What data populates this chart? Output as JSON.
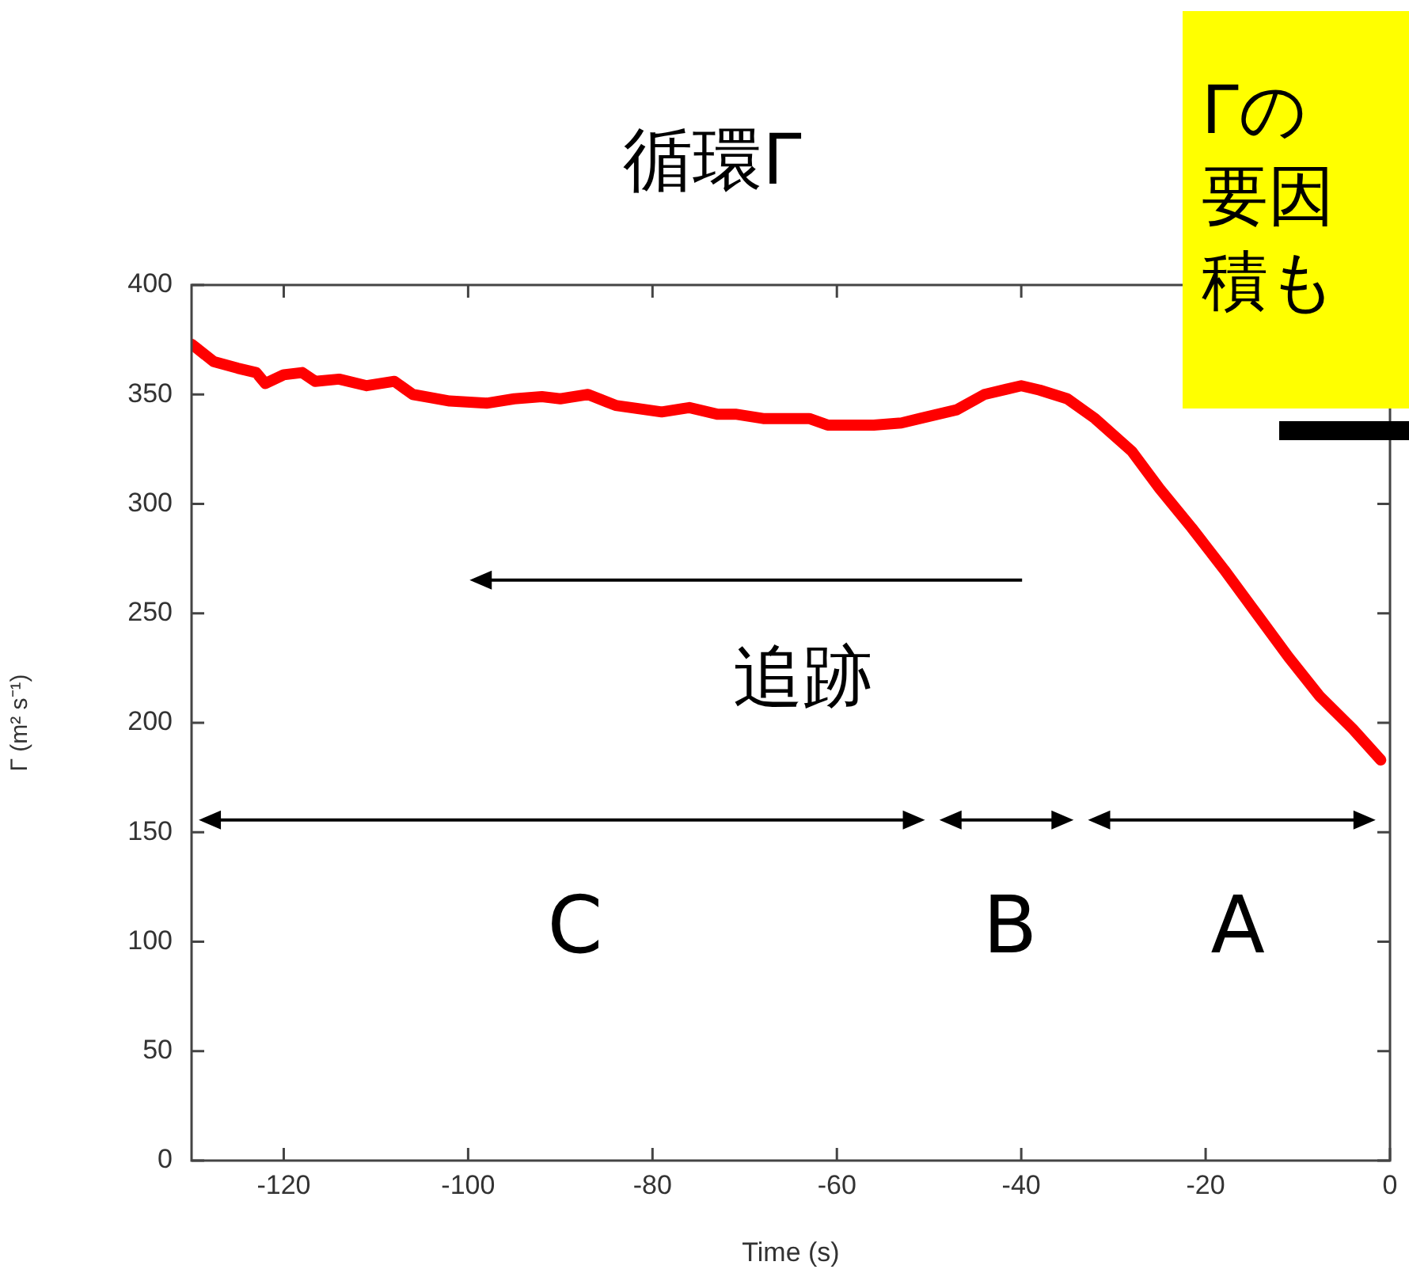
{
  "chart_data": {
    "type": "line",
    "title": "循環Γ",
    "xlabel": "Time (s)",
    "ylabel": "Γ (m² s⁻¹)",
    "xlim": [
      -130,
      0
    ],
    "xticks": [
      -120,
      -100,
      -80,
      -60,
      -40,
      -20,
      0
    ],
    "ylim": [
      0,
      400
    ],
    "yticks": [
      0,
      50,
      100,
      150,
      200,
      250,
      300,
      350,
      400
    ],
    "grid": false,
    "legend": false,
    "marker": "none",
    "line_style": "solid",
    "series": [
      {
        "color": "#ff0000",
        "x": [
          -130,
          -127.6,
          -125,
          -123,
          -122,
          -120,
          -118,
          -116.6,
          -114,
          -111,
          -108,
          -106,
          -102,
          -98,
          -95,
          -92,
          -90,
          -87,
          -84,
          -79,
          -76,
          -73,
          -71,
          -68,
          -66,
          -63,
          -61,
          -59,
          -56,
          -53,
          -51,
          -47,
          -44,
          -40,
          -38,
          -35,
          -32,
          -28,
          -25,
          -21.5,
          -18,
          -14.5,
          -11,
          -7.6,
          -4,
          -1
        ],
        "values": [
          373,
          365,
          362,
          360,
          355,
          359,
          360,
          356,
          357,
          354,
          356,
          350,
          347,
          346,
          348,
          349,
          348,
          350,
          345,
          342,
          344,
          341,
          341,
          339,
          339,
          339,
          336,
          336,
          336,
          337,
          339,
          343,
          350,
          354,
          352,
          348,
          339,
          324,
          307,
          289,
          270,
          250,
          230,
          212,
          197,
          183
        ]
      }
    ],
    "annotations": [
      "追跡",
      "C",
      "B",
      "A",
      "Γの要因積も"
    ]
  }
}
